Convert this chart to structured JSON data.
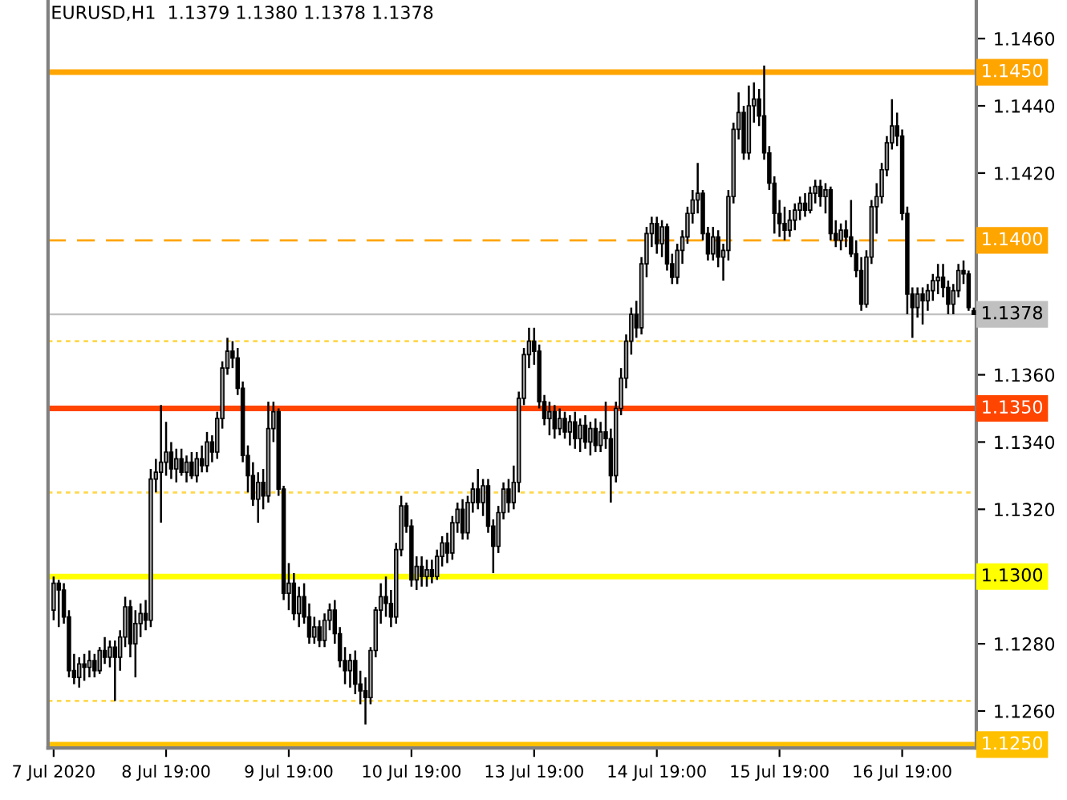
{
  "chart_data": {
    "type": "candlestick",
    "title": "EURUSD,H1  1.1379 1.1380 1.1378 1.1378",
    "categories": [
      "7 Jul 2020",
      null,
      null,
      null,
      null,
      null,
      null,
      null,
      null,
      null,
      null,
      null,
      null,
      null,
      null,
      null,
      null,
      null,
      null,
      null,
      null,
      null,
      "8 Jul 19:00",
      null,
      null,
      null,
      null,
      null,
      null,
      null,
      null,
      null,
      null,
      null,
      null,
      null,
      null,
      null,
      null,
      null,
      null,
      null,
      null,
      null,
      null,
      null,
      "9 Jul 19:00",
      null,
      null,
      null,
      null,
      null,
      null,
      null,
      null,
      null,
      null,
      null,
      null,
      null,
      null,
      null,
      null,
      null,
      null,
      null,
      null,
      null,
      null,
      null,
      "10 Jul 19:00",
      null,
      null,
      null,
      null,
      null,
      null,
      null,
      null,
      null,
      null,
      null,
      null,
      null,
      null,
      null,
      null,
      null,
      null,
      null,
      null,
      null,
      null,
      null,
      "13 Jul 19:00",
      null,
      null,
      null,
      null,
      null,
      null,
      null,
      null,
      null,
      null,
      null,
      null,
      null,
      null,
      null,
      null,
      null,
      null,
      null,
      null,
      null,
      null,
      null,
      "14 Jul 19:00",
      null,
      null,
      null,
      null,
      null,
      null,
      null,
      null,
      null,
      null,
      null,
      null,
      null,
      null,
      null,
      null,
      null,
      null,
      null,
      null,
      null,
      null,
      null,
      "15 Jul 19:00",
      null,
      null,
      null,
      null,
      null,
      null,
      null,
      null,
      null,
      null,
      null,
      null,
      null,
      null,
      null,
      null,
      null,
      null,
      null,
      null,
      null,
      null,
      null,
      "16 Jul 19:00",
      null,
      null,
      null,
      null,
      null,
      null,
      null,
      null,
      null,
      null,
      null,
      null,
      null,
      null
    ],
    "ohlc": [
      [
        1.129,
        1.13,
        1.1287,
        1.1298
      ],
      [
        1.1298,
        1.1299,
        1.1285,
        1.1296
      ],
      [
        1.1296,
        1.1298,
        1.1286,
        1.1288
      ],
      [
        1.1288,
        1.129,
        1.127,
        1.1272
      ],
      [
        1.1272,
        1.1277,
        1.1268,
        1.127
      ],
      [
        1.127,
        1.1276,
        1.1267,
        1.1274
      ],
      [
        1.1274,
        1.1277,
        1.1269,
        1.1273
      ],
      [
        1.1273,
        1.1278,
        1.127,
        1.1275
      ],
      [
        1.1275,
        1.1277,
        1.127,
        1.1272
      ],
      [
        1.1272,
        1.1279,
        1.1271,
        1.1278
      ],
      [
        1.1278,
        1.1282,
        1.1274,
        1.1276
      ],
      [
        1.1276,
        1.1281,
        1.1273,
        1.1279
      ],
      [
        1.1279,
        1.1281,
        1.1263,
        1.1276
      ],
      [
        1.1276,
        1.1284,
        1.1272,
        1.1282
      ],
      [
        1.1282,
        1.1294,
        1.1279,
        1.1291
      ],
      [
        1.1291,
        1.1293,
        1.1276,
        1.128
      ],
      [
        1.128,
        1.129,
        1.127,
        1.1286
      ],
      [
        1.1286,
        1.1292,
        1.1282,
        1.1289
      ],
      [
        1.1289,
        1.1293,
        1.1284,
        1.1287
      ],
      [
        1.1287,
        1.1332,
        1.1285,
        1.1329
      ],
      [
        1.1329,
        1.1335,
        1.1325,
        1.1331
      ],
      [
        1.1331,
        1.1351,
        1.1316,
        1.1334
      ],
      [
        1.1334,
        1.1346,
        1.133,
        1.1337
      ],
      [
        1.1337,
        1.134,
        1.1329,
        1.1332
      ],
      [
        1.1332,
        1.1338,
        1.1328,
        1.1335
      ],
      [
        1.1335,
        1.1338,
        1.133,
        1.1331
      ],
      [
        1.1331,
        1.1336,
        1.1328,
        1.1334
      ],
      [
        1.1334,
        1.1337,
        1.1329,
        1.133
      ],
      [
        1.133,
        1.1337,
        1.1328,
        1.1335
      ],
      [
        1.1335,
        1.1339,
        1.1331,
        1.1333
      ],
      [
        1.1333,
        1.1343,
        1.1331,
        1.134
      ],
      [
        1.134,
        1.1342,
        1.1334,
        1.1337
      ],
      [
        1.1337,
        1.1349,
        1.1335,
        1.1347
      ],
      [
        1.1347,
        1.1364,
        1.1344,
        1.1362
      ],
      [
        1.1362,
        1.1371,
        1.136,
        1.1367
      ],
      [
        1.1367,
        1.137,
        1.1362,
        1.1365
      ],
      [
        1.1365,
        1.1368,
        1.1354,
        1.1356
      ],
      [
        1.1356,
        1.1358,
        1.1334,
        1.1336
      ],
      [
        1.1336,
        1.1339,
        1.1325,
        1.133
      ],
      [
        1.133,
        1.1334,
        1.1321,
        1.1323
      ],
      [
        1.1323,
        1.1331,
        1.1316,
        1.1328
      ],
      [
        1.1328,
        1.1332,
        1.132,
        1.1324
      ],
      [
        1.1324,
        1.1352,
        1.1322,
        1.1344
      ],
      [
        1.1344,
        1.1352,
        1.134,
        1.1349
      ],
      [
        1.1349,
        1.135,
        1.1324,
        1.1326
      ],
      [
        1.1326,
        1.1327,
        1.1293,
        1.1295
      ],
      [
        1.1295,
        1.1304,
        1.129,
        1.1298
      ],
      [
        1.1298,
        1.1301,
        1.1287,
        1.1289
      ],
      [
        1.1289,
        1.1297,
        1.1285,
        1.1294
      ],
      [
        1.1294,
        1.1298,
        1.1286,
        1.1288
      ],
      [
        1.1288,
        1.1292,
        1.128,
        1.1282
      ],
      [
        1.1282,
        1.1288,
        1.128,
        1.1285
      ],
      [
        1.1285,
        1.1287,
        1.1279,
        1.1281
      ],
      [
        1.1281,
        1.1289,
        1.1279,
        1.1287
      ],
      [
        1.1287,
        1.1292,
        1.1284,
        1.129
      ],
      [
        1.129,
        1.1293,
        1.128,
        1.1283
      ],
      [
        1.1283,
        1.1285,
        1.1273,
        1.1275
      ],
      [
        1.1275,
        1.1279,
        1.1268,
        1.1272
      ],
      [
        1.1272,
        1.1277,
        1.1267,
        1.1275
      ],
      [
        1.1275,
        1.1278,
        1.1265,
        1.1268
      ],
      [
        1.1268,
        1.1272,
        1.1262,
        1.1266
      ],
      [
        1.1266,
        1.127,
        1.1256,
        1.1264
      ],
      [
        1.1264,
        1.1279,
        1.1262,
        1.1278
      ],
      [
        1.1278,
        1.1291,
        1.1276,
        1.129
      ],
      [
        1.129,
        1.1298,
        1.1286,
        1.1294
      ],
      [
        1.1294,
        1.13,
        1.1288,
        1.1292
      ],
      [
        1.1292,
        1.1296,
        1.1285,
        1.1288
      ],
      [
        1.1288,
        1.131,
        1.1286,
        1.1308
      ],
      [
        1.1308,
        1.1324,
        1.1306,
        1.1321
      ],
      [
        1.1321,
        1.1322,
        1.1313,
        1.1315
      ],
      [
        1.1315,
        1.1317,
        1.1297,
        1.1299
      ],
      [
        1.1299,
        1.1306,
        1.1296,
        1.1303
      ],
      [
        1.1303,
        1.1306,
        1.1297,
        1.13
      ],
      [
        1.13,
        1.1305,
        1.1297,
        1.1302
      ],
      [
        1.1302,
        1.1305,
        1.1298,
        1.13
      ],
      [
        1.13,
        1.1308,
        1.1299,
        1.1306
      ],
      [
        1.1306,
        1.1312,
        1.1303,
        1.131
      ],
      [
        1.131,
        1.1313,
        1.1304,
        1.1307
      ],
      [
        1.1307,
        1.1318,
        1.1305,
        1.1316
      ],
      [
        1.1316,
        1.1322,
        1.1313,
        1.132
      ],
      [
        1.132,
        1.1323,
        1.1311,
        1.1313
      ],
      [
        1.1313,
        1.1324,
        1.1311,
        1.1322
      ],
      [
        1.1322,
        1.1328,
        1.1319,
        1.1326
      ],
      [
        1.1326,
        1.1332,
        1.132,
        1.1322
      ],
      [
        1.1322,
        1.1329,
        1.1318,
        1.1327
      ],
      [
        1.1327,
        1.1329,
        1.1313,
        1.1315
      ],
      [
        1.1315,
        1.1317,
        1.1301,
        1.1309
      ],
      [
        1.1309,
        1.1321,
        1.1307,
        1.1319
      ],
      [
        1.1319,
        1.1328,
        1.1317,
        1.1326
      ],
      [
        1.1326,
        1.1329,
        1.1319,
        1.1322
      ],
      [
        1.1322,
        1.1333,
        1.132,
        1.1328
      ],
      [
        1.1328,
        1.1355,
        1.1325,
        1.1353
      ],
      [
        1.1353,
        1.1368,
        1.1351,
        1.1366
      ],
      [
        1.1366,
        1.1374,
        1.1362,
        1.137
      ],
      [
        1.137,
        1.1374,
        1.1363,
        1.1367
      ],
      [
        1.1367,
        1.1369,
        1.135,
        1.1352
      ],
      [
        1.1352,
        1.1354,
        1.1345,
        1.1347
      ],
      [
        1.1347,
        1.1352,
        1.1342,
        1.1349
      ],
      [
        1.1349,
        1.1351,
        1.1341,
        1.1344
      ],
      [
        1.1344,
        1.135,
        1.1342,
        1.1347
      ],
      [
        1.1347,
        1.1349,
        1.1341,
        1.1343
      ],
      [
        1.1343,
        1.1348,
        1.1339,
        1.1346
      ],
      [
        1.1346,
        1.1349,
        1.1338,
        1.1341
      ],
      [
        1.1341,
        1.1347,
        1.1337,
        1.1345
      ],
      [
        1.1345,
        1.1348,
        1.1338,
        1.134
      ],
      [
        1.134,
        1.1346,
        1.1336,
        1.1344
      ],
      [
        1.1344,
        1.1347,
        1.1337,
        1.1339
      ],
      [
        1.1339,
        1.1346,
        1.1337,
        1.1343
      ],
      [
        1.1343,
        1.1352,
        1.1338,
        1.1341
      ],
      [
        1.1341,
        1.1344,
        1.1322,
        1.133
      ],
      [
        1.133,
        1.1352,
        1.1328,
        1.135
      ],
      [
        1.135,
        1.1362,
        1.1348,
        1.1359
      ],
      [
        1.1359,
        1.1372,
        1.1356,
        1.137
      ],
      [
        1.137,
        1.138,
        1.1366,
        1.1378
      ],
      [
        1.1378,
        1.1382,
        1.1371,
        1.1374
      ],
      [
        1.1374,
        1.1395,
        1.1372,
        1.1393
      ],
      [
        1.1393,
        1.1404,
        1.1389,
        1.1402
      ],
      [
        1.1402,
        1.1407,
        1.1398,
        1.1405
      ],
      [
        1.1405,
        1.1407,
        1.1396,
        1.1399
      ],
      [
        1.1399,
        1.1406,
        1.1395,
        1.1404
      ],
      [
        1.1404,
        1.1405,
        1.1391,
        1.1393
      ],
      [
        1.1393,
        1.1396,
        1.1387,
        1.1389
      ],
      [
        1.1389,
        1.1399,
        1.1387,
        1.1397
      ],
      [
        1.1397,
        1.1403,
        1.1393,
        1.1401
      ],
      [
        1.1401,
        1.141,
        1.1399,
        1.1408
      ],
      [
        1.1408,
        1.1415,
        1.1405,
        1.1412
      ],
      [
        1.1412,
        1.1423,
        1.1408,
        1.1414
      ],
      [
        1.1414,
        1.1415,
        1.14,
        1.1402
      ],
      [
        1.1402,
        1.1404,
        1.1394,
        1.1396
      ],
      [
        1.1396,
        1.1404,
        1.1394,
        1.1401
      ],
      [
        1.1401,
        1.1403,
        1.1392,
        1.1395
      ],
      [
        1.1395,
        1.1399,
        1.1388,
        1.1397
      ],
      [
        1.1397,
        1.1415,
        1.1394,
        1.1413
      ],
      [
        1.1413,
        1.1435,
        1.1411,
        1.1433
      ],
      [
        1.1433,
        1.1444,
        1.143,
        1.1438
      ],
      [
        1.1438,
        1.144,
        1.1424,
        1.1426
      ],
      [
        1.1426,
        1.1446,
        1.1424,
        1.144
      ],
      [
        1.144,
        1.1447,
        1.1435,
        1.1442
      ],
      [
        1.1442,
        1.1445,
        1.1434,
        1.1437
      ],
      [
        1.1437,
        1.1452,
        1.1424,
        1.1426
      ],
      [
        1.1426,
        1.1428,
        1.1415,
        1.1417
      ],
      [
        1.1417,
        1.1419,
        1.1402,
        1.1408
      ],
      [
        1.1408,
        1.1412,
        1.1401,
        1.1405
      ],
      [
        1.1405,
        1.141,
        1.14,
        1.1403
      ],
      [
        1.1403,
        1.1409,
        1.1401,
        1.1406
      ],
      [
        1.1406,
        1.1411,
        1.1403,
        1.1409
      ],
      [
        1.1409,
        1.1413,
        1.1406,
        1.1411
      ],
      [
        1.1411,
        1.1414,
        1.1407,
        1.1409
      ],
      [
        1.1409,
        1.1416,
        1.1408,
        1.1414
      ],
      [
        1.1414,
        1.1418,
        1.1411,
        1.1416
      ],
      [
        1.1416,
        1.1418,
        1.141,
        1.1413
      ],
      [
        1.1413,
        1.1417,
        1.1408,
        1.1415
      ],
      [
        1.1415,
        1.1416,
        1.14,
        1.1402
      ],
      [
        1.1402,
        1.1406,
        1.1398,
        1.14
      ],
      [
        1.14,
        1.1405,
        1.1397,
        1.1403
      ],
      [
        1.1403,
        1.1406,
        1.1398,
        1.1401
      ],
      [
        1.1401,
        1.1412,
        1.1395,
        1.1396
      ],
      [
        1.1396,
        1.14,
        1.1389,
        1.1391
      ],
      [
        1.1391,
        1.1395,
        1.1379,
        1.1381
      ],
      [
        1.1381,
        1.1397,
        1.138,
        1.1395
      ],
      [
        1.1395,
        1.1412,
        1.1393,
        1.141
      ],
      [
        1.141,
        1.1417,
        1.1402,
        1.1413
      ],
      [
        1.1413,
        1.1423,
        1.1411,
        1.1421
      ],
      [
        1.1421,
        1.1431,
        1.1419,
        1.1429
      ],
      [
        1.1429,
        1.1442,
        1.1427,
        1.1434
      ],
      [
        1.1434,
        1.1438,
        1.1428,
        1.1431
      ],
      [
        1.1431,
        1.1433,
        1.1406,
        1.1408
      ],
      [
        1.1408,
        1.141,
        1.1378,
        1.1384
      ],
      [
        1.1384,
        1.1386,
        1.1371,
        1.138
      ],
      [
        1.138,
        1.1386,
        1.1377,
        1.1384
      ],
      [
        1.1384,
        1.1386,
        1.1375,
        1.1382
      ],
      [
        1.1382,
        1.1387,
        1.1379,
        1.1385
      ],
      [
        1.1385,
        1.139,
        1.1382,
        1.1388
      ],
      [
        1.1388,
        1.1393,
        1.1384,
        1.1389
      ],
      [
        1.1389,
        1.1393,
        1.1383,
        1.1386
      ],
      [
        1.1386,
        1.1388,
        1.1378,
        1.1381
      ],
      [
        1.1381,
        1.1387,
        1.1378,
        1.1385
      ],
      [
        1.1385,
        1.1393,
        1.1383,
        1.1391
      ],
      [
        1.1391,
        1.1394,
        1.1387,
        1.139
      ],
      [
        1.139,
        1.1391,
        1.1379,
        1.138
      ],
      [
        1.1379,
        1.138,
        1.1378,
        1.1378
      ]
    ],
    "colors": [
      "#a0a0a0",
      "#000000",
      "#000000",
      "#000000",
      "#000000",
      "#a0a0a0",
      "#000000",
      "#a0a0a0",
      "#000000",
      "#a0a0a0",
      "#000000",
      "#a0a0a0",
      "#000000",
      "#a0a0a0",
      "#a0a0a0",
      "#000000",
      "#a0a0a0",
      "#a0a0a0",
      "#000000",
      "#a0a0a0",
      "#a0a0a0",
      "#a0a0a0",
      "#a0a0a0",
      "#000000",
      "#a0a0a0",
      "#000000",
      "#a0a0a0",
      "#000000",
      "#a0a0a0",
      "#000000",
      "#a0a0a0",
      "#000000",
      "#a0a0a0",
      "#a0a0a0",
      "#a0a0a0",
      "#000000",
      "#000000",
      "#000000",
      "#000000",
      "#000000",
      "#a0a0a0",
      "#000000",
      "#a0a0a0",
      "#a0a0a0",
      "#000000",
      "#000000",
      "#a0a0a0",
      "#000000",
      "#a0a0a0",
      "#000000",
      "#000000",
      "#a0a0a0",
      "#000000",
      "#a0a0a0",
      "#a0a0a0",
      "#000000",
      "#000000",
      "#000000",
      "#a0a0a0",
      "#000000",
      "#000000",
      "#000000",
      "#a0a0a0",
      "#a0a0a0",
      "#a0a0a0",
      "#000000",
      "#000000",
      "#a0a0a0",
      "#a0a0a0",
      "#000000",
      "#000000",
      "#a0a0a0",
      "#000000",
      "#a0a0a0",
      "#000000",
      "#a0a0a0",
      "#a0a0a0",
      "#000000",
      "#a0a0a0",
      "#a0a0a0",
      "#000000",
      "#a0a0a0",
      "#a0a0a0",
      "#000000",
      "#a0a0a0",
      "#000000",
      "#000000",
      "#a0a0a0",
      "#a0a0a0",
      "#000000",
      "#a0a0a0",
      "#a0a0a0",
      "#a0a0a0",
      "#a0a0a0",
      "#000000",
      "#000000",
      "#000000",
      "#a0a0a0",
      "#000000",
      "#a0a0a0",
      "#000000",
      "#a0a0a0",
      "#000000",
      "#a0a0a0",
      "#000000",
      "#a0a0a0",
      "#000000",
      "#a0a0a0",
      "#000000",
      "#000000",
      "#a0a0a0",
      "#a0a0a0",
      "#a0a0a0",
      "#a0a0a0",
      "#000000",
      "#a0a0a0",
      "#a0a0a0",
      "#a0a0a0",
      "#000000",
      "#a0a0a0",
      "#000000",
      "#000000",
      "#a0a0a0",
      "#a0a0a0",
      "#a0a0a0",
      "#a0a0a0",
      "#a0a0a0",
      "#000000",
      "#000000",
      "#a0a0a0",
      "#000000",
      "#a0a0a0",
      "#a0a0a0",
      "#a0a0a0",
      "#a0a0a0",
      "#000000",
      "#a0a0a0",
      "#a0a0a0",
      "#000000",
      "#000000",
      "#000000",
      "#000000",
      "#000000",
      "#000000",
      "#a0a0a0",
      "#a0a0a0",
      "#a0a0a0",
      "#000000",
      "#a0a0a0",
      "#a0a0a0",
      "#000000",
      "#a0a0a0",
      "#000000",
      "#000000",
      "#a0a0a0",
      "#000000",
      "#000000",
      "#000000",
      "#000000",
      "#a0a0a0",
      "#a0a0a0",
      "#a0a0a0",
      "#a0a0a0",
      "#a0a0a0",
      "#a0a0a0",
      "#000000",
      "#000000",
      "#000000",
      "#000000",
      "#a0a0a0",
      "#000000",
      "#a0a0a0",
      "#a0a0a0",
      "#a0a0a0",
      "#000000",
      "#000000",
      "#a0a0a0",
      "#a0a0a0",
      "#000000",
      "#000000",
      "#000000"
    ],
    "ylim": [
      1.1249,
      1.1471
    ],
    "yticks": [
      {
        "value": 1.126,
        "label": "1.1260"
      },
      {
        "value": 1.128,
        "label": "1.1280"
      },
      {
        "value": 1.132,
        "label": "1.1320"
      },
      {
        "value": 1.134,
        "label": "1.1340"
      },
      {
        "value": 1.136,
        "label": "1.1360"
      },
      {
        "value": 1.138,
        "label": null
      },
      {
        "value": 1.142,
        "label": "1.1420"
      },
      {
        "value": 1.144,
        "label": "1.1440"
      },
      {
        "value": 1.146,
        "label": "1.1460"
      }
    ],
    "ref_lines": [
      {
        "axis": "y",
        "value": 1.145,
        "label": "1.1450",
        "color": "#ffa500",
        "line_style": "solid"
      },
      {
        "axis": "y",
        "value": 1.14,
        "label": "1.1400",
        "color": "#ffa500",
        "line_style": "dashed"
      },
      {
        "axis": "y",
        "value": 1.1378,
        "label": "1.1378",
        "color": "#c0c0c0",
        "line_style": "solid"
      },
      {
        "axis": "y",
        "value": 1.137,
        "label": null,
        "color": "#ffd84d",
        "line_style": "dotted"
      },
      {
        "axis": "y",
        "value": 1.135,
        "label": "1.1350",
        "color": "#ff4500",
        "line_style": "solid"
      },
      {
        "axis": "y",
        "value": 1.1325,
        "label": null,
        "color": "#ffd84d",
        "line_style": "dotted"
      },
      {
        "axis": "y",
        "value": 1.13,
        "label": "1.1300",
        "color": "#ffff00",
        "line_style": "solid"
      },
      {
        "axis": "y",
        "value": 1.1263,
        "label": null,
        "color": "#ffd84d",
        "line_style": "dotted"
      },
      {
        "axis": "y",
        "value": 1.125,
        "label": "1.1250",
        "color": "#ffc000",
        "line_style": "solid"
      }
    ],
    "grid": false,
    "legend": false
  }
}
